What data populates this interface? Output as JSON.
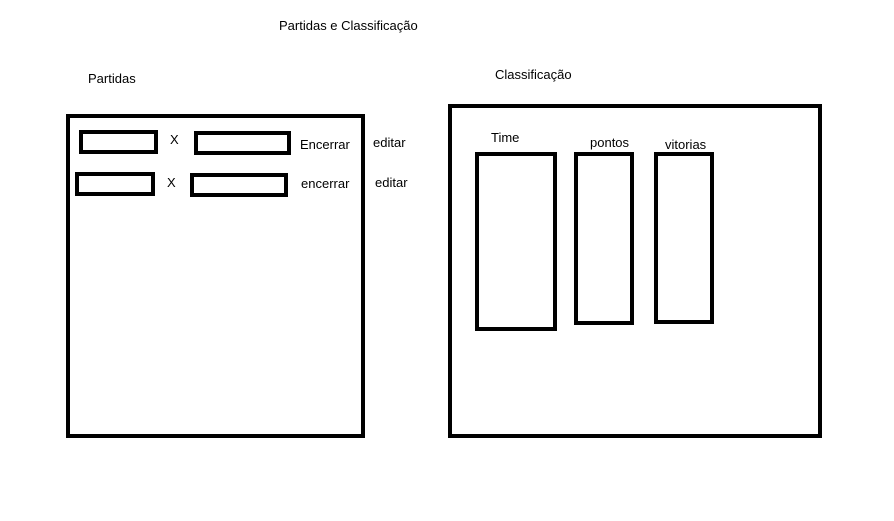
{
  "page": {
    "title": "Partidas e Classificação"
  },
  "partidas": {
    "heading": "Partidas",
    "rows": [
      {
        "separator": "X",
        "end_label": "Encerrar",
        "edit_label": "editar"
      },
      {
        "separator": "X",
        "end_label": "encerrar",
        "edit_label": "editar"
      }
    ]
  },
  "classificacao": {
    "heading": "Classificação",
    "columns": [
      "Time",
      "pontos",
      "vitorias"
    ]
  }
}
